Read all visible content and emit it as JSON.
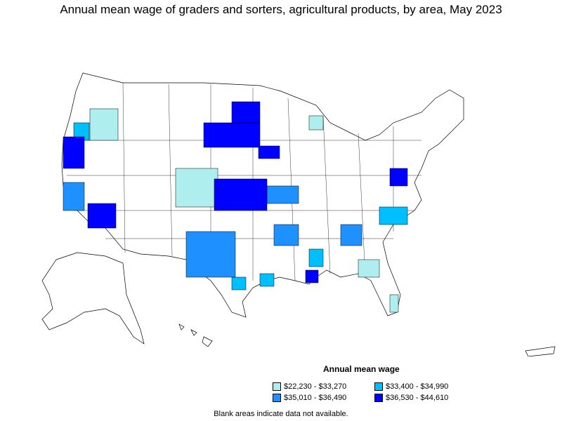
{
  "title": "Annual mean wage of graders and sorters, agricultural products, by area, May 2023",
  "legend": {
    "title": "Annual mean wage",
    "items": [
      {
        "label": "$22,230 - $33,270",
        "color": "#aeeeee"
      },
      {
        "label": "$33,400 - $34,990",
        "color": "#00bfff"
      },
      {
        "label": "$35,010 - $36,490",
        "color": "#1e90ff"
      },
      {
        "label": "$36,530 - $44,610",
        "color": "#0000ff"
      }
    ]
  },
  "note": "Blank areas indicate data not available."
}
